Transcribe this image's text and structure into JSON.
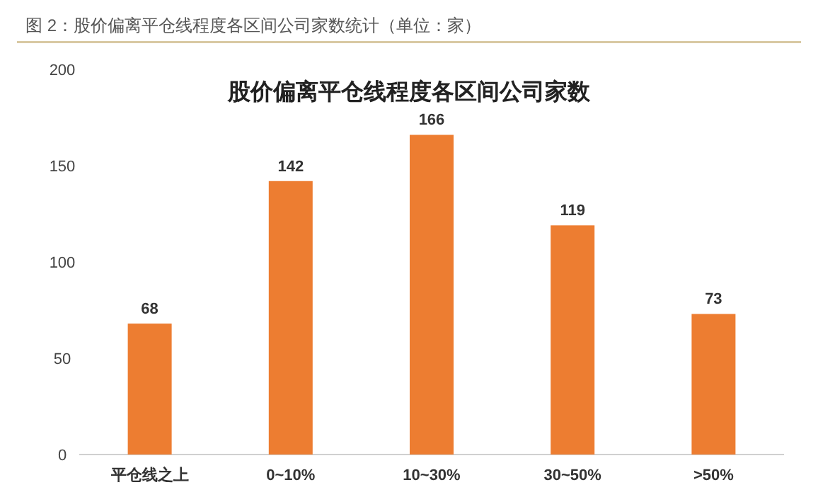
{
  "chart_data": {
    "type": "bar",
    "title": "图 2：股价偏离平仓线程度各区间公司家数统计（单位：家）",
    "subtitle": "股价偏离平仓线程度各区间公司家数",
    "categories": [
      "平仓线之上",
      "0~10%",
      "10~30%",
      "30~50%",
      ">50%"
    ],
    "values": [
      68,
      142,
      166,
      119,
      73
    ],
    "color": "#ed7d31",
    "ylim": [
      0,
      200
    ],
    "yticks": [
      0,
      50,
      100,
      150,
      200
    ],
    "data_labels": true,
    "grid": false
  }
}
